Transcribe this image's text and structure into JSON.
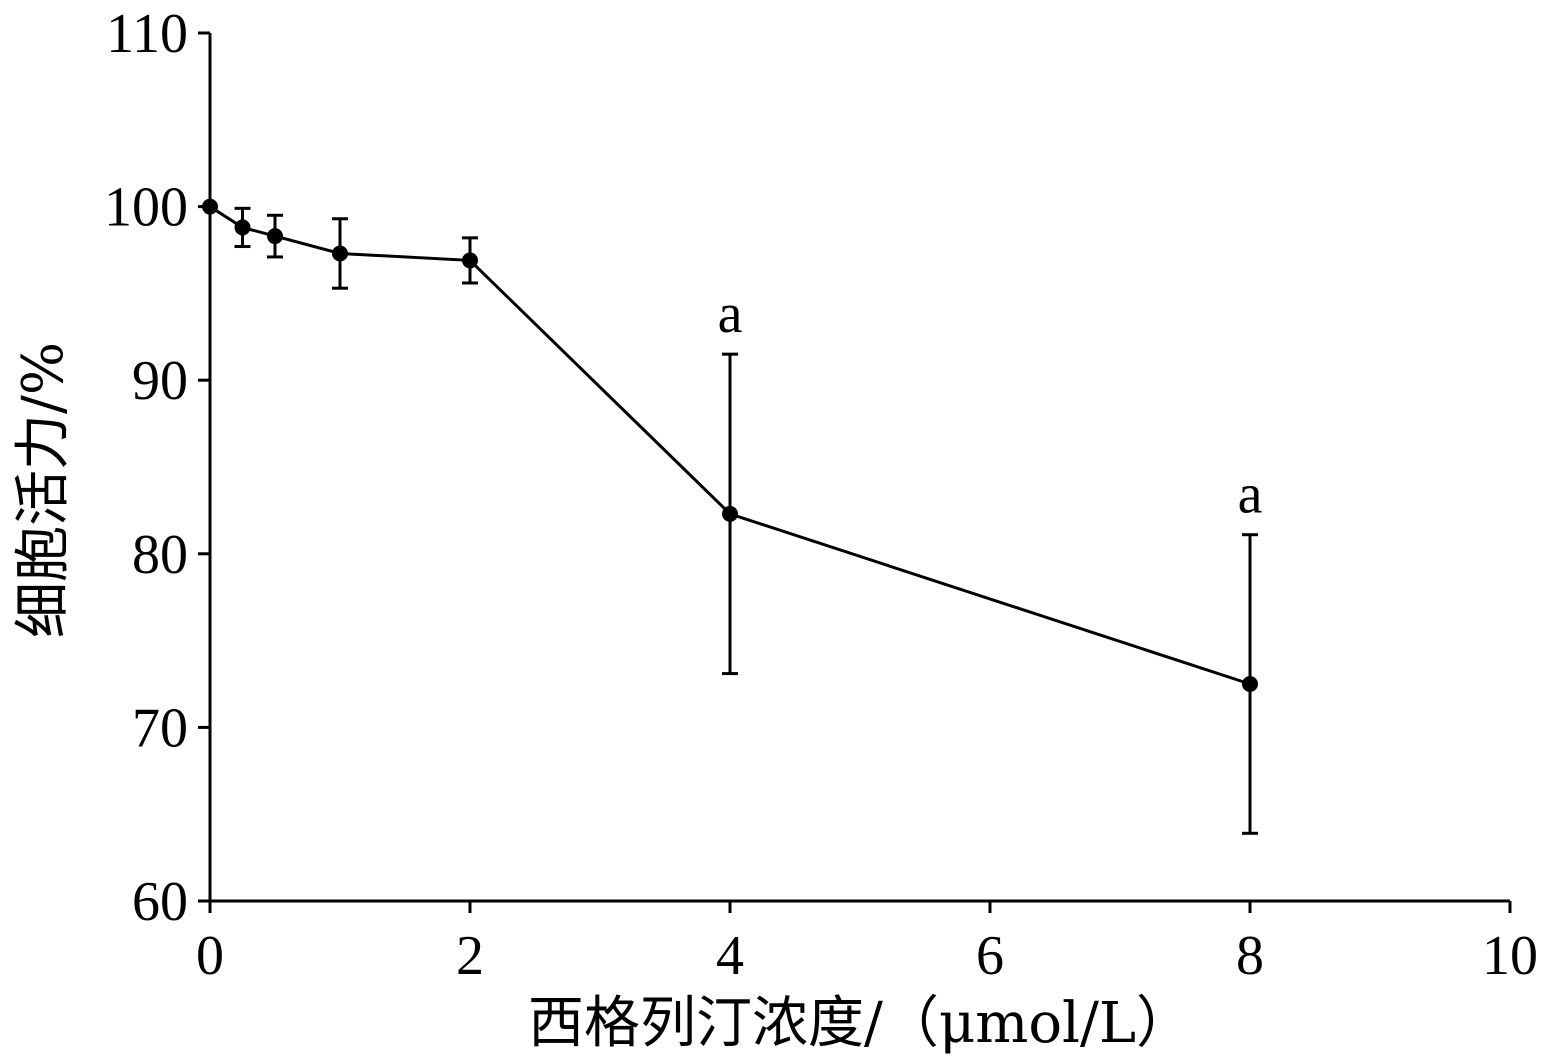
{
  "chart_data": {
    "type": "line",
    "xlabel": "西格列汀浓度/（μmol/L）",
    "ylabel": "细胞活力/%",
    "xlim": [
      0,
      10
    ],
    "ylim": [
      60,
      110
    ],
    "xticks": [
      0,
      2,
      4,
      6,
      8,
      10
    ],
    "yticks": [
      60,
      70,
      80,
      90,
      100,
      110
    ],
    "x_tick_labels": [
      "0",
      "2",
      "4",
      "6",
      "8",
      "10"
    ],
    "y_tick_labels": [
      "60",
      "70",
      "80",
      "90",
      "100",
      "110"
    ],
    "grid": false,
    "series": [
      {
        "x": [
          0,
          0.25,
          0.5,
          1,
          2,
          4,
          8
        ],
        "y": [
          100,
          98.8,
          98.3,
          97.3,
          96.9,
          82.3,
          72.5
        ],
        "error": [
          0,
          1.1,
          1.2,
          2.0,
          1.3,
          9.2,
          8.6
        ],
        "color": "#000000"
      }
    ],
    "annotations": [
      {
        "text": "a",
        "x": 4
      },
      {
        "text": "a",
        "x": 8
      }
    ]
  }
}
